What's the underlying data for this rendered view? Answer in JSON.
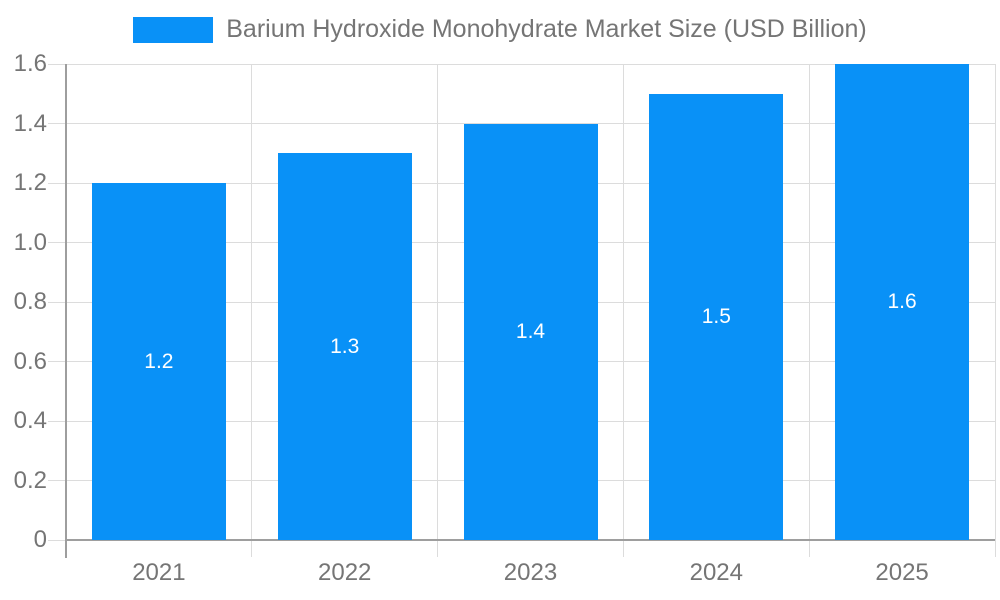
{
  "chart_data": {
    "type": "bar",
    "title": "Barium Hydroxide Monohydrate Market Size (USD Billion)",
    "legend": {
      "position": "top",
      "entries": [
        "Barium Hydroxide Monohydrate Market Size (USD Billion)"
      ]
    },
    "categories": [
      "2021",
      "2022",
      "2023",
      "2024",
      "2025"
    ],
    "values": [
      1.2,
      1.3,
      1.4,
      1.5,
      1.6
    ],
    "bar_labels": [
      "1.2",
      "1.3",
      "1.4",
      "1.5",
      "1.6"
    ],
    "xlabel": "",
    "ylabel": "",
    "ylim": [
      0,
      1.6
    ],
    "y_ticks": [
      0,
      0.2,
      0.4,
      0.6,
      0.8,
      1.0,
      1.2,
      1.4,
      1.6
    ],
    "y_tick_labels": [
      "0",
      "0.2",
      "0.4",
      "0.6",
      "0.8",
      "1.0",
      "1.2",
      "1.4",
      "1.6"
    ],
    "grid": true,
    "colors": {
      "bar": "#0991f7",
      "tick_text": "#757575",
      "legend_text": "#757575",
      "grid": "#dcdcdc",
      "axis": "#9e9e9e",
      "bar_label_text": "#ffffff",
      "background": "#ffffff"
    }
  }
}
